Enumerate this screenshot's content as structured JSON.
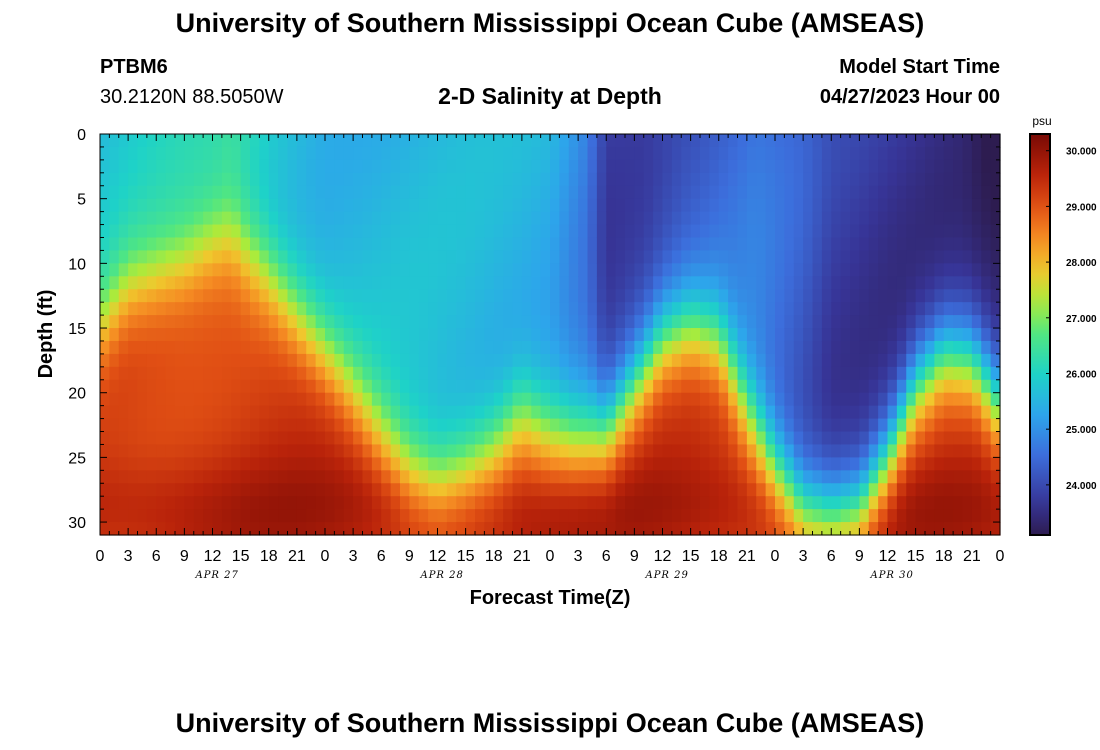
{
  "header": {
    "title": "University of Southern Mississippi Ocean Cube (AMSEAS)",
    "station": "PTBM6",
    "coords": "30.2120N  88.5050W",
    "subtitle": "2-D Salinity at Depth",
    "start_label": "Model Start Time",
    "start_value": "04/27/2023 Hour 00"
  },
  "footer": {
    "title": "University of Southern Mississippi Ocean Cube (AMSEAS)"
  },
  "chart_data": {
    "type": "heatmap",
    "title": "2-D Salinity at Depth",
    "xlabel": "Forecast Time(Z)",
    "ylabel": "Depth (ft)",
    "x_range_hours": [
      0,
      96
    ],
    "ylim": [
      0,
      31
    ],
    "y_inverted": true,
    "x_ticks": [
      "0",
      "3",
      "6",
      "9",
      "12",
      "15",
      "18",
      "21",
      "0",
      "3",
      "6",
      "9",
      "12",
      "15",
      "18",
      "21",
      "0",
      "3",
      "6",
      "9",
      "12",
      "15",
      "18",
      "21",
      "0",
      "3",
      "6",
      "9",
      "12",
      "15",
      "18",
      "21",
      "0"
    ],
    "y_ticks": [
      0,
      5,
      10,
      15,
      20,
      25,
      30
    ],
    "dates": [
      "APR 27",
      "APR 28",
      "APR 29",
      "APR 30"
    ],
    "colorbar": {
      "unit": "psu",
      "range": [
        23.1,
        30.3
      ],
      "ticks": [
        "24.000",
        "25.000",
        "26.000",
        "27.000",
        "28.000",
        "29.000",
        "30.000"
      ]
    },
    "surface_salinity": [
      {
        "t": 0,
        "v": 25.6
      },
      {
        "t": 12,
        "v": 26.0
      },
      {
        "t": 14,
        "v": 26.2
      },
      {
        "t": 18,
        "v": 25.9
      },
      {
        "t": 24,
        "v": 25.6
      },
      {
        "t": 36,
        "v": 25.5
      },
      {
        "t": 48,
        "v": 25.4
      },
      {
        "t": 52,
        "v": 24.8
      },
      {
        "t": 54,
        "v": 23.9
      },
      {
        "t": 58,
        "v": 24.0
      },
      {
        "t": 62,
        "v": 24.3
      },
      {
        "t": 70,
        "v": 24.6
      },
      {
        "t": 75,
        "v": 24.2
      },
      {
        "t": 78,
        "v": 23.8
      },
      {
        "t": 84,
        "v": 23.7
      },
      {
        "t": 92,
        "v": 23.6
      },
      {
        "t": 96,
        "v": 23.2
      }
    ],
    "halocline_depth_ft": [
      {
        "t": 0,
        "v": 15
      },
      {
        "t": 3,
        "v": 12
      },
      {
        "t": 6,
        "v": 11
      },
      {
        "t": 9,
        "v": 10
      },
      {
        "t": 12,
        "v": 8.5
      },
      {
        "t": 14,
        "v": 8
      },
      {
        "t": 18,
        "v": 11
      },
      {
        "t": 21,
        "v": 14
      },
      {
        "t": 24,
        "v": 17
      },
      {
        "t": 28,
        "v": 21
      },
      {
        "t": 30,
        "v": 23
      },
      {
        "t": 33,
        "v": 25.5
      },
      {
        "t": 36,
        "v": 26.5
      },
      {
        "t": 39,
        "v": 25.5
      },
      {
        "t": 42,
        "v": 24
      },
      {
        "t": 45,
        "v": 21.5
      },
      {
        "t": 48,
        "v": 23
      },
      {
        "t": 51,
        "v": 23.5
      },
      {
        "t": 54,
        "v": 23
      },
      {
        "t": 57,
        "v": 19.5
      },
      {
        "t": 60,
        "v": 16
      },
      {
        "t": 63,
        "v": 15
      },
      {
        "t": 66,
        "v": 16
      },
      {
        "t": 69,
        "v": 21
      },
      {
        "t": 72,
        "v": 25.5
      },
      {
        "t": 75,
        "v": 29
      },
      {
        "t": 78,
        "v": 29.5
      },
      {
        "t": 81,
        "v": 29
      },
      {
        "t": 84,
        "v": 25
      },
      {
        "t": 87,
        "v": 19.5
      },
      {
        "t": 90,
        "v": 17
      },
      {
        "t": 93,
        "v": 17.5
      },
      {
        "t": 96,
        "v": 21
      }
    ]
  }
}
